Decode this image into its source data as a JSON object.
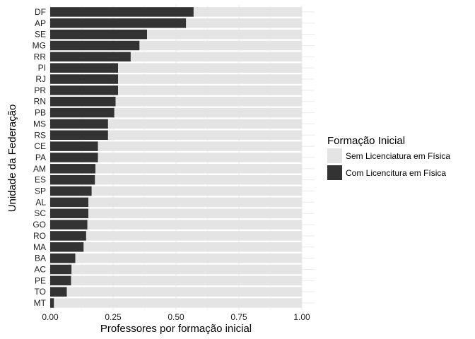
{
  "chart_data": {
    "type": "bar",
    "orientation": "horizontal",
    "stacked": true,
    "xlabel": "Professores por formação inicial",
    "ylabel": "Unidade da Federação",
    "xlim": [
      0,
      1
    ],
    "x_ticks": [
      "0.00",
      "0.25",
      "0.50",
      "0.75",
      "1.00"
    ],
    "x_tick_values": [
      0,
      0.25,
      0.5,
      0.75,
      1
    ],
    "categories": [
      "DF",
      "AP",
      "SE",
      "MG",
      "RR",
      "PI",
      "RJ",
      "PR",
      "RN",
      "PB",
      "MS",
      "RS",
      "CE",
      "PA",
      "AM",
      "ES",
      "SP",
      "AL",
      "SC",
      "GO",
      "RO",
      "MA",
      "BA",
      "AC",
      "PE",
      "TO",
      "MT"
    ],
    "series": [
      {
        "name": "Com Licencitura em Física",
        "color": "#333333",
        "values": [
          0.57,
          0.54,
          0.385,
          0.355,
          0.32,
          0.27,
          0.27,
          0.27,
          0.26,
          0.255,
          0.23,
          0.23,
          0.19,
          0.19,
          0.18,
          0.178,
          0.165,
          0.152,
          0.152,
          0.148,
          0.143,
          0.133,
          0.1,
          0.085,
          0.083,
          0.066,
          0.015
        ]
      },
      {
        "name": "Sem Licenciatura em Física",
        "color": "#e4e4e4",
        "values": [
          0.43,
          0.46,
          0.615,
          0.645,
          0.68,
          0.73,
          0.73,
          0.73,
          0.74,
          0.745,
          0.77,
          0.77,
          0.81,
          0.81,
          0.82,
          0.822,
          0.835,
          0.848,
          0.848,
          0.852,
          0.857,
          0.867,
          0.9,
          0.915,
          0.917,
          0.934,
          0.985
        ]
      }
    ],
    "legend": {
      "title": "Formação Inicial",
      "placement": "right",
      "entries": [
        {
          "label": "Sem Licenciatura em Física",
          "color": "#e4e4e4"
        },
        {
          "label": "Com Licencitura em Física",
          "color": "#333333"
        }
      ]
    },
    "grid": true
  }
}
